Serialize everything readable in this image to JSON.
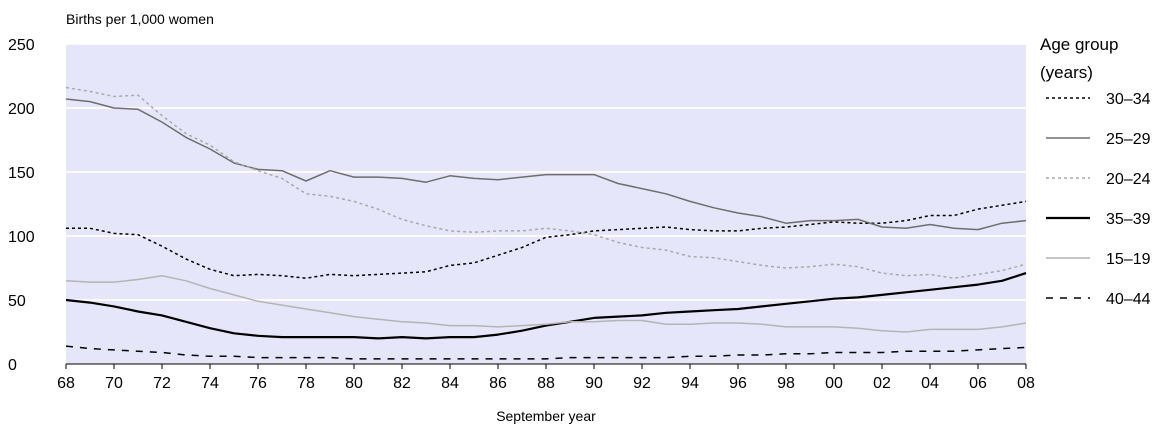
{
  "chart_data": {
    "type": "line",
    "ylabel": "Births per 1,000 women",
    "xlabel": "September year",
    "ylim": [
      0,
      250
    ],
    "yticks": [
      0,
      50,
      100,
      150,
      200,
      250
    ],
    "xlim": [
      1968,
      2008
    ],
    "xticks": [
      {
        "value": 1968,
        "label": "68"
      },
      {
        "value": 1970,
        "label": "70"
      },
      {
        "value": 1972,
        "label": "72"
      },
      {
        "value": 1974,
        "label": "74"
      },
      {
        "value": 1976,
        "label": "76"
      },
      {
        "value": 1978,
        "label": "78"
      },
      {
        "value": 1980,
        "label": "80"
      },
      {
        "value": 1982,
        "label": "82"
      },
      {
        "value": 1984,
        "label": "84"
      },
      {
        "value": 1986,
        "label": "86"
      },
      {
        "value": 1988,
        "label": "88"
      },
      {
        "value": 1990,
        "label": "90"
      },
      {
        "value": 1992,
        "label": "92"
      },
      {
        "value": 1994,
        "label": "94"
      },
      {
        "value": 1996,
        "label": "96"
      },
      {
        "value": 1998,
        "label": "98"
      },
      {
        "value": 2000,
        "label": "00"
      },
      {
        "value": 2002,
        "label": "02"
      },
      {
        "value": 2004,
        "label": "04"
      },
      {
        "value": 2006,
        "label": "06"
      },
      {
        "value": 2008,
        "label": "08"
      }
    ],
    "grid": true,
    "plot_background": "#e6e6fa",
    "legend": {
      "title_line1": "Age group",
      "title_line2": "(years)",
      "position": "right"
    },
    "x": [
      1968,
      1969,
      1970,
      1971,
      1972,
      1973,
      1974,
      1975,
      1976,
      1977,
      1978,
      1979,
      1980,
      1981,
      1982,
      1983,
      1984,
      1985,
      1986,
      1987,
      1988,
      1989,
      1990,
      1991,
      1992,
      1993,
      1994,
      1995,
      1996,
      1997,
      1998,
      1999,
      2000,
      2001,
      2002,
      2003,
      2004,
      2005,
      2006,
      2007,
      2008
    ],
    "series": [
      {
        "name": "30–34",
        "color": "#000000",
        "dash": "3,3",
        "width": 1.5,
        "values": [
          106,
          106,
          102,
          101,
          92,
          82,
          74,
          69,
          70,
          69,
          67,
          70,
          69,
          70,
          71,
          72,
          77,
          79,
          85,
          91,
          99,
          101,
          104,
          105,
          106,
          107,
          105,
          104,
          104,
          106,
          107,
          109,
          111,
          110,
          110,
          112,
          116,
          116,
          121,
          124,
          127
        ]
      },
      {
        "name": "25–29",
        "color": "#6e6e6e",
        "dash": "",
        "width": 1.5,
        "values": [
          207,
          205,
          200,
          199,
          189,
          177,
          168,
          157,
          152,
          151,
          143,
          151,
          146,
          146,
          145,
          142,
          147,
          145,
          144,
          146,
          148,
          148,
          148,
          141,
          137,
          133,
          127,
          122,
          118,
          115,
          110,
          112,
          112,
          113,
          107,
          106,
          109,
          106,
          105,
          110,
          112
        ]
      },
      {
        "name": "20–24",
        "color": "#a9a9a9",
        "dash": "3,3",
        "width": 1.5,
        "values": [
          216,
          213,
          209,
          210,
          194,
          180,
          171,
          158,
          151,
          145,
          133,
          131,
          127,
          121,
          113,
          108,
          104,
          103,
          104,
          104,
          106,
          104,
          101,
          95,
          91,
          89,
          84,
          83,
          80,
          77,
          75,
          76,
          78,
          76,
          71,
          69,
          70,
          67,
          70,
          73,
          78
        ]
      },
      {
        "name": "35–39",
        "color": "#000000",
        "dash": "",
        "width": 2.2,
        "values": [
          50,
          48,
          45,
          41,
          38,
          33,
          28,
          24,
          22,
          21,
          21,
          21,
          21,
          20,
          21,
          20,
          21,
          21,
          23,
          26,
          30,
          33,
          36,
          37,
          38,
          40,
          41,
          42,
          43,
          45,
          47,
          49,
          51,
          52,
          54,
          56,
          58,
          60,
          62,
          65,
          71
        ]
      },
      {
        "name": "15–19",
        "color": "#b4b4b4",
        "dash": "",
        "width": 1.5,
        "values": [
          65,
          64,
          64,
          66,
          69,
          65,
          59,
          54,
          49,
          46,
          43,
          40,
          37,
          35,
          33,
          32,
          30,
          30,
          29,
          30,
          31,
          33,
          33,
          34,
          34,
          31,
          31,
          32,
          32,
          31,
          29,
          29,
          29,
          28,
          26,
          25,
          27,
          27,
          27,
          29,
          32
        ]
      },
      {
        "name": "40–44",
        "color": "#000000",
        "dash": "7,7",
        "width": 1.5,
        "values": [
          14,
          12,
          11,
          10,
          9,
          7,
          6,
          6,
          5,
          5,
          5,
          5,
          4,
          4,
          4,
          4,
          4,
          4,
          4,
          4,
          4,
          5,
          5,
          5,
          5,
          5,
          6,
          6,
          7,
          7,
          8,
          8,
          9,
          9,
          9,
          10,
          10,
          10,
          11,
          12,
          13
        ]
      }
    ]
  }
}
